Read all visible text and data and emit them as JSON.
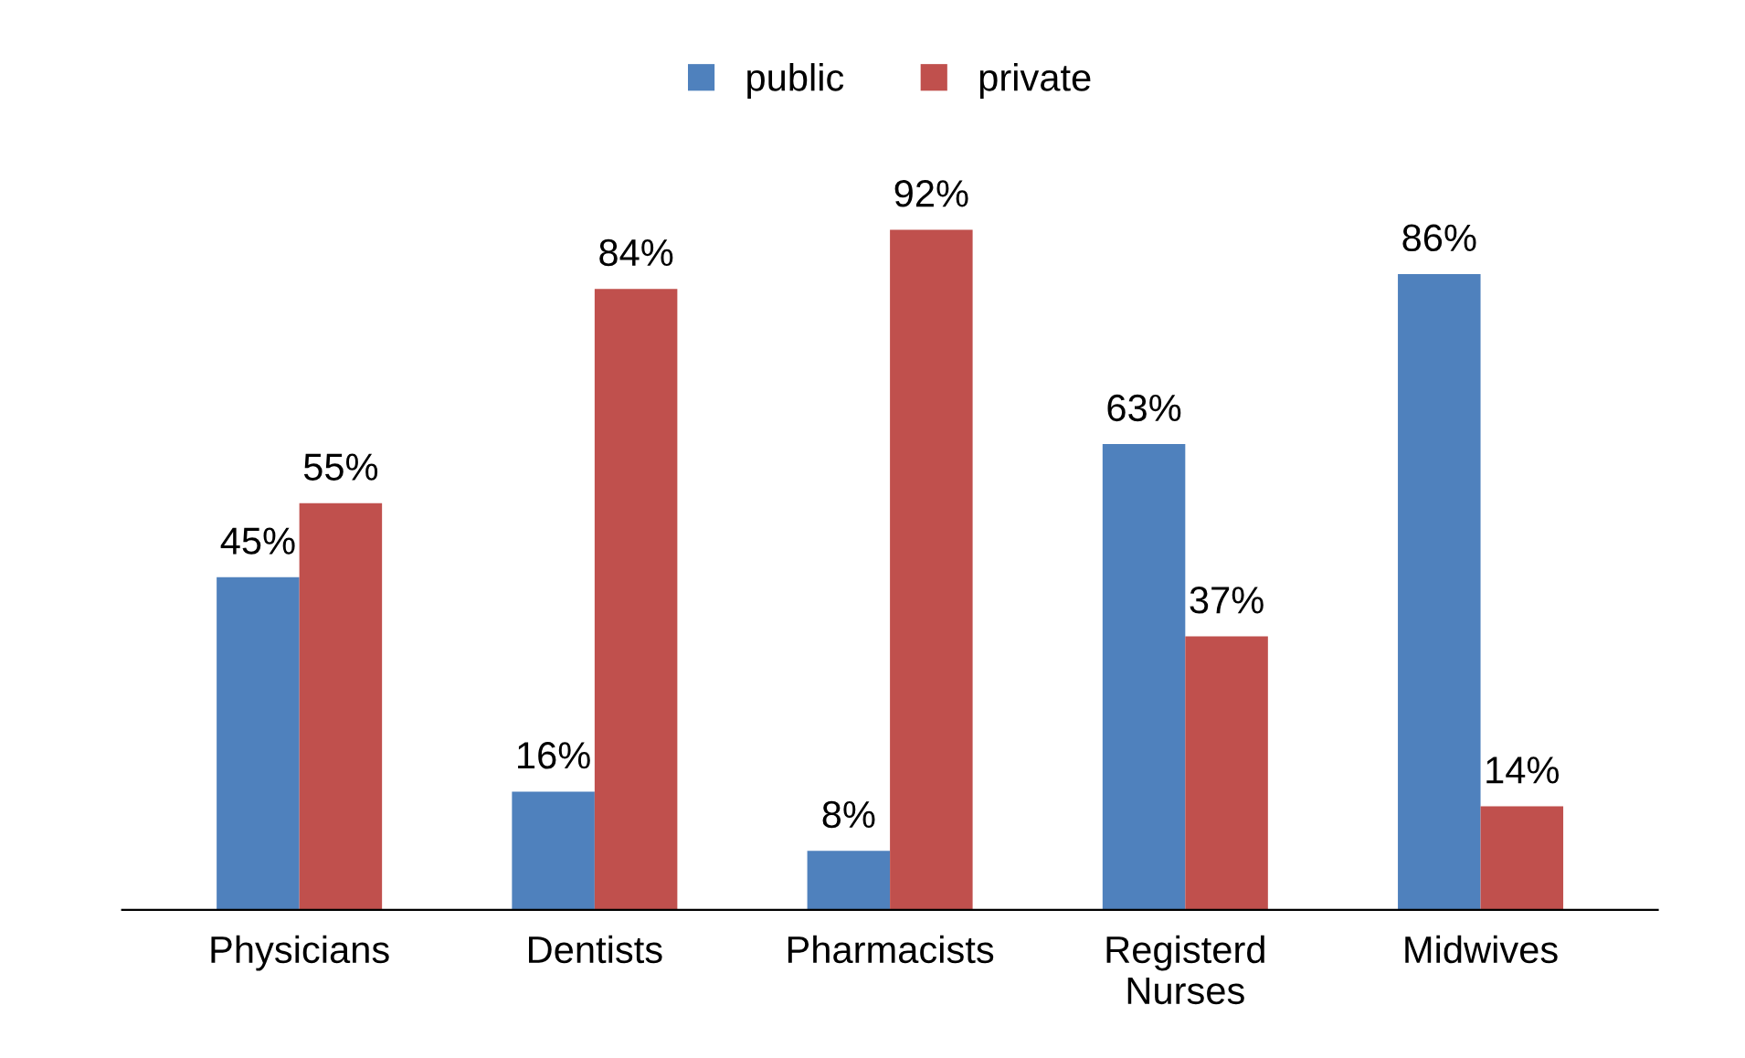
{
  "chart_data": {
    "type": "bar",
    "categories": [
      "Physicians",
      "Dentists",
      "Pharmacists",
      "Registerd\nNurses",
      "Midwives"
    ],
    "series": [
      {
        "name": "public",
        "color": "#4f81bd",
        "values": [
          45,
          16,
          8,
          63,
          86
        ],
        "value_labels": [
          "45%",
          "16%",
          "8%",
          "63%",
          "86%"
        ]
      },
      {
        "name": "private",
        "color": "#c0504d",
        "values": [
          55,
          84,
          92,
          37,
          14
        ],
        "value_labels": [
          "55%",
          "84%",
          "92%",
          "37%",
          "14%"
        ]
      }
    ],
    "legend": "top",
    "grid": false
  }
}
